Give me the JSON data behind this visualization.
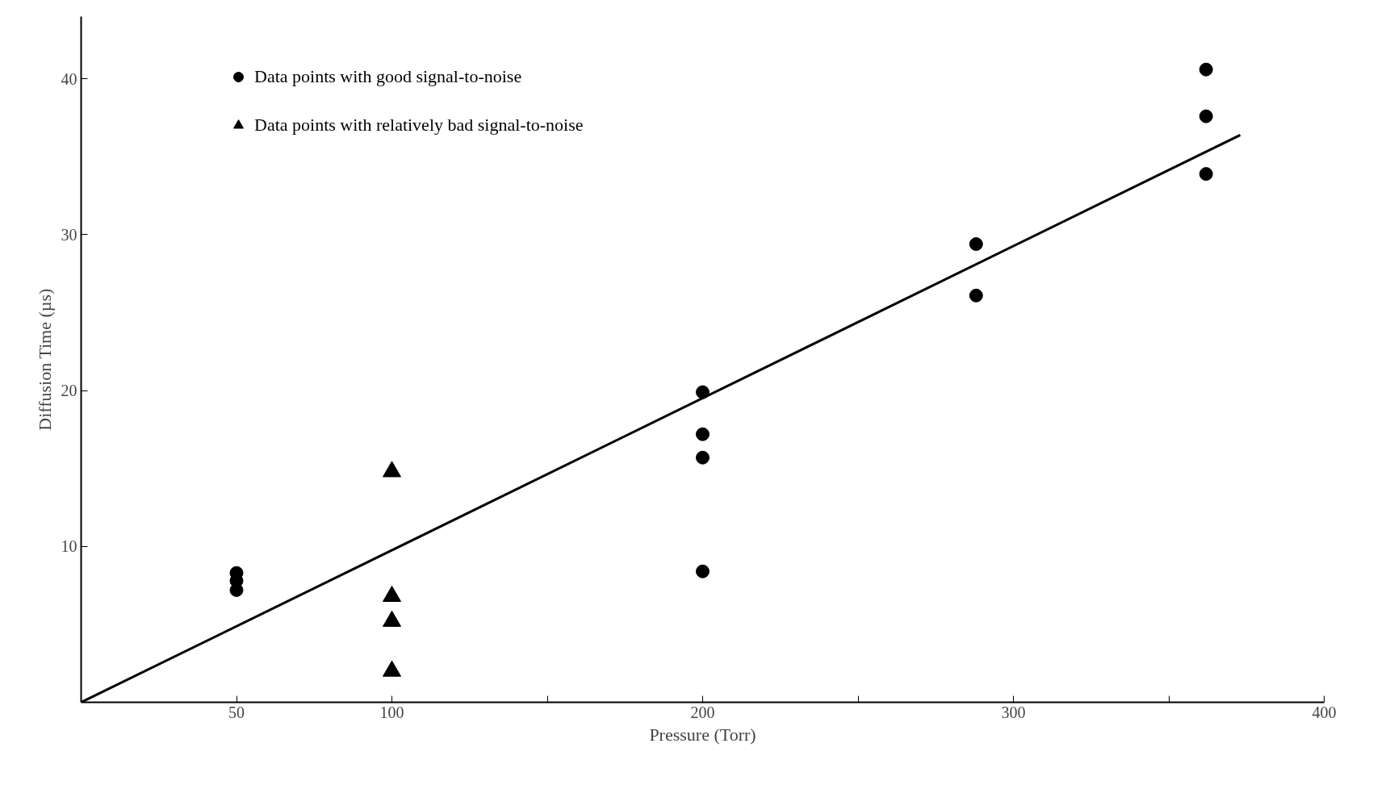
{
  "chart_data": {
    "type": "scatter",
    "xlabel": "Pressure (Torr)",
    "ylabel": "Diffusion Time (µs)",
    "xlim": [
      0,
      400
    ],
    "ylim": [
      0,
      44
    ],
    "xticks": [
      50,
      100,
      {
        "value": 150,
        "label": null
      },
      200,
      {
        "value": 250,
        "label": null
      },
      300,
      {
        "value": 350,
        "label": null
      },
      400
    ],
    "yticks": [
      10,
      20,
      30,
      40
    ],
    "grid": false,
    "legend": "top left",
    "series": [
      {
        "name": "Data points with good signal-to-noise",
        "color": "#000000",
        "marker": "circle",
        "x": [
          50,
          50,
          50,
          200,
          200,
          200,
          200,
          288,
          288,
          362,
          362,
          362
        ],
        "values": [
          8.3,
          7.8,
          7.2,
          19.9,
          17.2,
          15.7,
          8.4,
          29.4,
          26.1,
          40.6,
          37.6,
          33.9
        ]
      },
      {
        "name": "Data points with relatively bad signal-to-noise",
        "color": "#000000",
        "marker": "triangle",
        "x": [
          100,
          100,
          100,
          100
        ],
        "values": [
          14.8,
          6.8,
          5.2,
          2.0
        ]
      },
      {
        "type": "line",
        "color": "#000000",
        "x": [
          0,
          373
        ],
        "values": [
          0,
          36.4
        ]
      }
    ]
  }
}
